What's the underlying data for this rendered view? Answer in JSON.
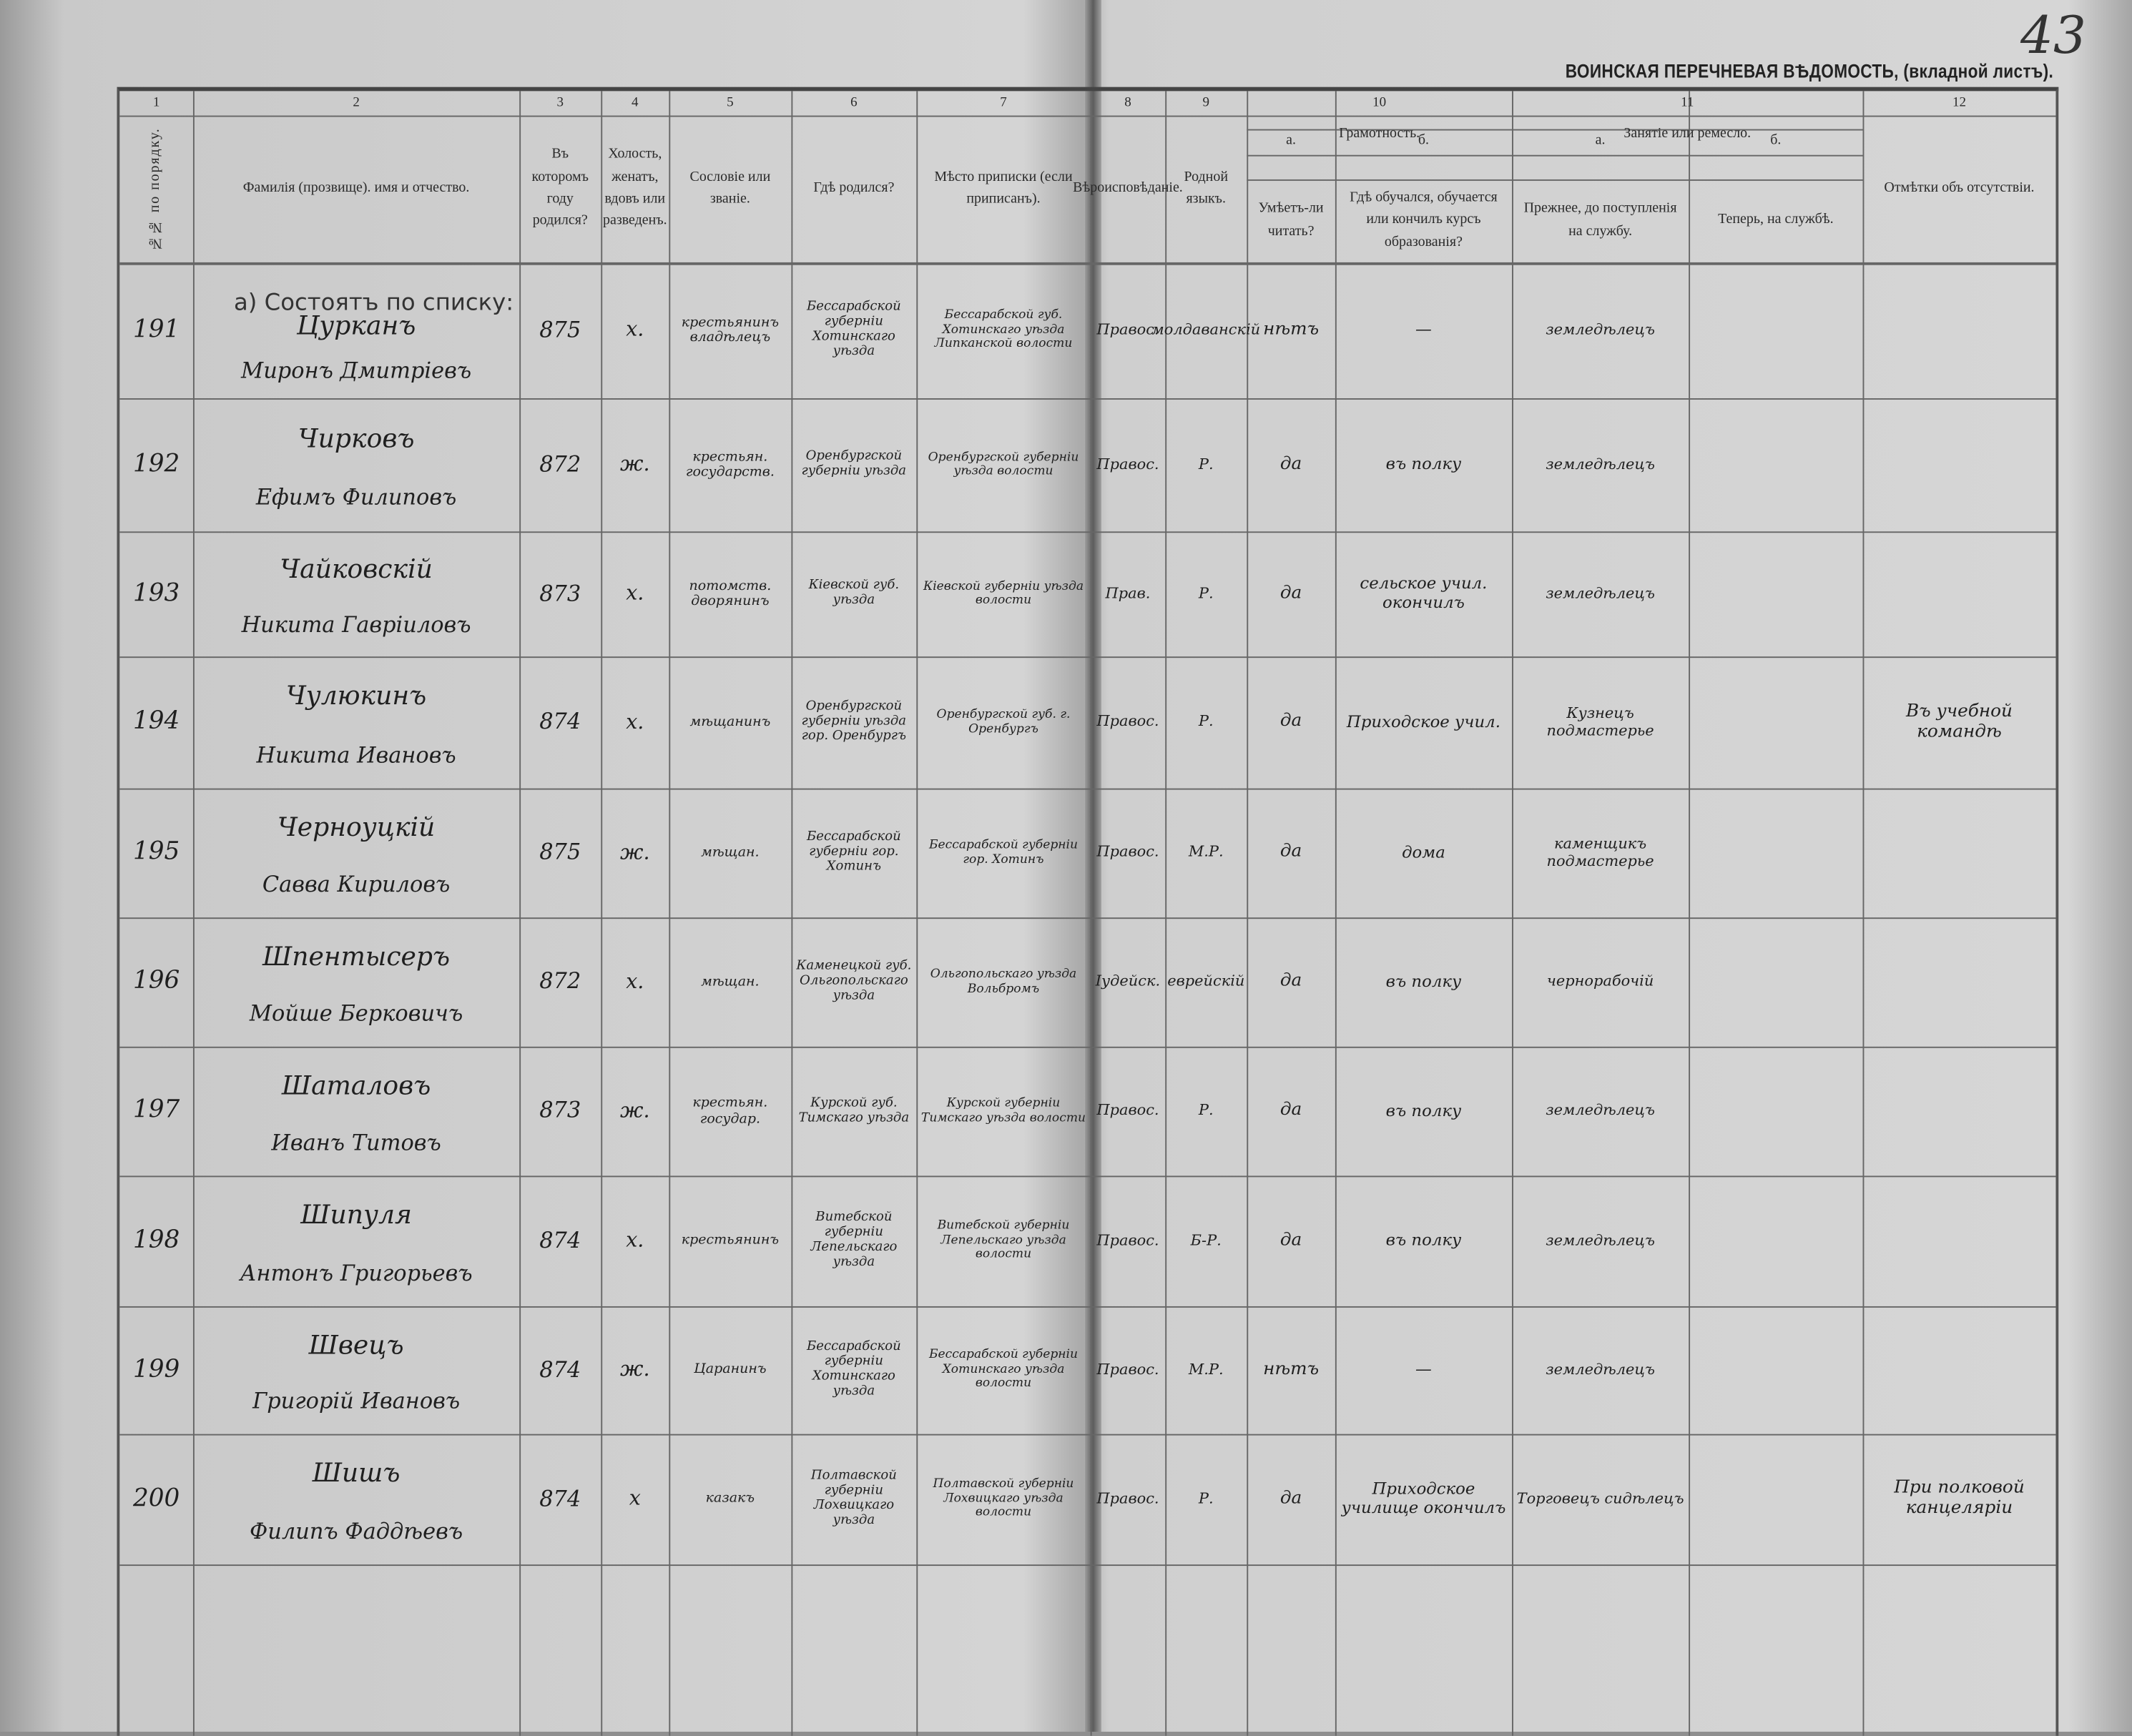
{
  "page_number": "43",
  "title": "ВОИНСКАЯ ПЕРЕЧНЕВАЯ ВѢДОМОСТЬ, (вкладной листъ).",
  "column_numbers": [
    "1",
    "2",
    "3",
    "4",
    "5",
    "6",
    "7",
    "8",
    "9",
    "10",
    "11",
    "12"
  ],
  "headers": {
    "order_no": "№№ по порядку.",
    "name": "Фамилія (прозвище). имя и отчество.",
    "birth_year": "Въ которомъ году родился?",
    "marital": "Холость, женатъ, вдовъ или разведенъ.",
    "estate": "Сословіе или званіе.",
    "birthplace": "Гдѣ родился?",
    "registration": "Мѣсто приписки (если приписанъ).",
    "religion": "Вѣроисповѣданіе.",
    "language": "Родной языкъ.",
    "literacy": "Грамотность.",
    "literacy_a_label": "а.",
    "literacy_a": "Умѣетъ-ли читать?",
    "literacy_b_label": "б.",
    "literacy_b": "Гдѣ обучался, обучается или кончилъ курсъ образованія?",
    "occupation": "Занятіе или ремесло.",
    "occupation_a_label": "а.",
    "occupation_a": "Прежнее, до поступленія на службу.",
    "occupation_b_label": "б.",
    "occupation_b": "Теперь, на службѣ.",
    "absence": "Отмѣтки объ отсутствіи."
  },
  "section_label": "а) Состоятъ по списку:",
  "rows": [
    {
      "no": "191",
      "surname": "Цурканъ",
      "given": "Миронъ Дмитріевъ",
      "year": "875",
      "marital": "х.",
      "estate": "крестьянинъ владѣлецъ",
      "birthplace": "Бессарабской губерніи Хотинскаго уѣзда",
      "registration": "Бессарабской губ. Хотинскаго уѣзда Липканской волости",
      "religion": "Правос.",
      "language": "молдаванскій",
      "reads": "нѣтъ",
      "school": "—",
      "occ_before": "земледѣлецъ",
      "occ_now": "",
      "absence": ""
    },
    {
      "no": "192",
      "surname": "Чирковъ",
      "given": "Ефимъ Филиповъ",
      "year": "872",
      "marital": "ж.",
      "estate": "крестьян. государств.",
      "birthplace": "Оренбургской губерніи уѣзда",
      "registration": "Оренбургской губерніи уѣзда волости",
      "religion": "Правос.",
      "language": "Р.",
      "reads": "да",
      "school": "въ полку",
      "occ_before": "земледѣлецъ",
      "occ_now": "",
      "absence": ""
    },
    {
      "no": "193",
      "surname": "Чайковскій",
      "given": "Никита Гавріиловъ",
      "year": "873",
      "marital": "х.",
      "estate": "потомств. дворянинъ",
      "birthplace": "Кіевской губ. уѣзда",
      "registration": "Кіевской губерніи уѣзда волости",
      "religion": "Прав.",
      "language": "Р.",
      "reads": "да",
      "school": "сельское учил. окончилъ",
      "occ_before": "земледѣлецъ",
      "occ_now": "",
      "absence": ""
    },
    {
      "no": "194",
      "surname": "Чулюкинъ",
      "given": "Никита Ивановъ",
      "year": "874",
      "marital": "х.",
      "estate": "мѣщанинъ",
      "birthplace": "Оренбургской губерніи уѣзда гор. Оренбургъ",
      "registration": "Оренбургской губ. г. Оренбургъ",
      "religion": "Правос.",
      "language": "Р.",
      "reads": "да",
      "school": "Приходское учил.",
      "occ_before": "Кузнецъ подмастерье",
      "occ_now": "",
      "absence": "Въ учебной командѣ"
    },
    {
      "no": "195",
      "surname": "Черноуцкій",
      "given": "Савва Кириловъ",
      "year": "875",
      "marital": "ж.",
      "estate": "мѣщан.",
      "birthplace": "Бессарабской губерніи гор. Хотинъ",
      "registration": "Бессарабской губерніи гор. Хотинъ",
      "religion": "Правос.",
      "language": "М.Р.",
      "reads": "да",
      "school": "дома",
      "occ_before": "каменщикъ подмастерье",
      "occ_now": "",
      "absence": ""
    },
    {
      "no": "196",
      "surname": "Шпентысеръ",
      "given": "Мойше Берковичъ",
      "year": "872",
      "marital": "х.",
      "estate": "мѣщан.",
      "birthplace": "Каменецкой губ. Ольгопольскаго уѣзда",
      "registration": "Ольгопольскаго уѣзда Вольбромъ",
      "religion": "Іудейск.",
      "language": "еврейскій",
      "reads": "да",
      "school": "въ полку",
      "occ_before": "чернорабочій",
      "occ_now": "",
      "absence": ""
    },
    {
      "no": "197",
      "surname": "Шаталовъ",
      "given": "Иванъ Титовъ",
      "year": "873",
      "marital": "ж.",
      "estate": "крестьян. государ.",
      "birthplace": "Курской губ. Тимскаго уѣзда",
      "registration": "Курской губерніи Тимскаго уѣзда волости",
      "religion": "Правос.",
      "language": "Р.",
      "reads": "да",
      "school": "въ полку",
      "occ_before": "земледѣлецъ",
      "occ_now": "",
      "absence": ""
    },
    {
      "no": "198",
      "surname": "Шипуля",
      "given": "Антонъ Григорьевъ",
      "year": "874",
      "marital": "х.",
      "estate": "крестьянинъ",
      "birthplace": "Витебской губерніи Лепельскаго уѣзда",
      "registration": "Витебской губерніи Лепельскаго уѣзда волости",
      "religion": "Правос.",
      "language": "Б-Р.",
      "reads": "да",
      "school": "въ полку",
      "occ_before": "земледѣлецъ",
      "occ_now": "",
      "absence": ""
    },
    {
      "no": "199",
      "surname": "Швецъ",
      "given": "Григорій Ивановъ",
      "year": "874",
      "marital": "ж.",
      "estate": "Царанинъ",
      "birthplace": "Бессарабской губерніи Хотинскаго уѣзда",
      "registration": "Бессарабской губерніи Хотинскаго уѣзда волости",
      "religion": "Правос.",
      "language": "М.Р.",
      "reads": "нѣтъ",
      "school": "—",
      "occ_before": "земледѣлецъ",
      "occ_now": "",
      "absence": ""
    },
    {
      "no": "200",
      "surname": "Шишъ",
      "given": "Филипъ Фаддѣевъ",
      "year": "874",
      "marital": "х",
      "estate": "казакъ",
      "birthplace": "Полтавской губерніи Лохвицкаго уѣзда",
      "registration": "Полтавской губерніи Лохвицкаго уѣзда волости",
      "religion": "Правос.",
      "language": "Р.",
      "reads": "да",
      "school": "Приходское училище окончилъ",
      "occ_before": "Торговецъ сидѣлецъ",
      "occ_now": "",
      "absence": "При полковой канцеляріи"
    }
  ]
}
